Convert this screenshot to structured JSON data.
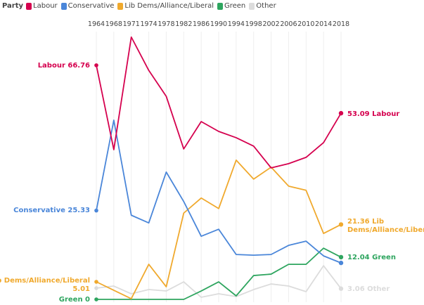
{
  "chart_data": {
    "type": "line",
    "legend_title": "Party",
    "legend_placement": "top-left",
    "x": [
      "1964",
      "1968",
      "1971",
      "1974",
      "1978",
      "1982",
      "1986",
      "1990",
      "1994",
      "1998",
      "2002",
      "2006",
      "2010",
      "2014",
      "2018"
    ],
    "ylim": [
      0,
      76
    ],
    "grid": "vertical",
    "series": [
      {
        "name": "Labour",
        "color": "#d5004e",
        "values": [
          66.76,
          42.7,
          74.8,
          65.3,
          57.9,
          42.9,
          50.7,
          47.9,
          46.1,
          43.7,
          37.5,
          38.7,
          40.5,
          44.7,
          53.09
        ],
        "start_label": "Labour 66.76",
        "end_label": "53.09 Labour"
      },
      {
        "name": "Conservative",
        "color": "#4a86d9",
        "values": [
          25.33,
          51.1,
          24.0,
          21.8,
          36.3,
          27.9,
          18.0,
          20.0,
          12.8,
          12.6,
          12.8,
          15.4,
          16.6,
          12.4,
          10.4
        ],
        "start_label": "Conservative 25.33",
        "end_label": ""
      },
      {
        "name": "Lib Dems/Alliance/Liberal",
        "color": "#f0a92d",
        "values": [
          5.01,
          2.6,
          0.2,
          10.0,
          3.6,
          24.6,
          28.9,
          25.9,
          39.7,
          34.3,
          37.7,
          32.3,
          31.1,
          18.8,
          21.36
        ],
        "start_label": "Lib Dems/Alliance/Liberal 5.01",
        "end_label": "21.36 Lib Dems/Alliance/Liberal"
      },
      {
        "name": "Green",
        "color": "#2ea55f",
        "values": [
          0,
          0,
          0,
          0,
          0,
          0,
          2.4,
          5.0,
          1.0,
          6.8,
          7.2,
          10.0,
          10.0,
          14.6,
          12.04
        ],
        "start_label": "Green 0",
        "end_label": "12.04 Green"
      },
      {
        "name": "Other",
        "color": "#dcdcdc",
        "values": [
          3.2,
          3.8,
          1.6,
          2.8,
          2.4,
          5.0,
          0.6,
          1.6,
          0.8,
          2.8,
          4.4,
          3.8,
          2.2,
          9.6,
          3.06
        ],
        "start_label": "",
        "end_label": "3.06 Other"
      }
    ]
  }
}
